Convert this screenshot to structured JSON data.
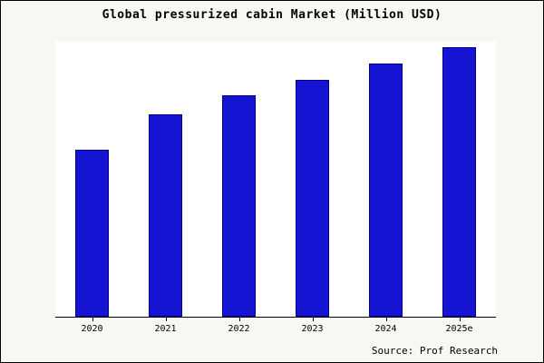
{
  "title": "Global pressurized cabin Market (Million USD)",
  "source": "Source: Prof Research",
  "colors": {
    "bar_fill": "#1414d2",
    "bar_edge": "#00008b",
    "figure_background": "#f7f7f4",
    "plot_background": "#ffffff",
    "axis": "#000000"
  },
  "chart_data": {
    "type": "bar",
    "title": "Global pressurized cabin Market (Million USD)",
    "categories": [
      "2020",
      "2021",
      "2022",
      "2023",
      "2024",
      "2025e"
    ],
    "values": [
      62,
      75,
      82,
      88,
      94,
      100
    ],
    "xlabel": "",
    "ylabel": "",
    "ylim": [
      0,
      102
    ],
    "grid": false,
    "legend": false,
    "y_axis_labeled": false
  }
}
